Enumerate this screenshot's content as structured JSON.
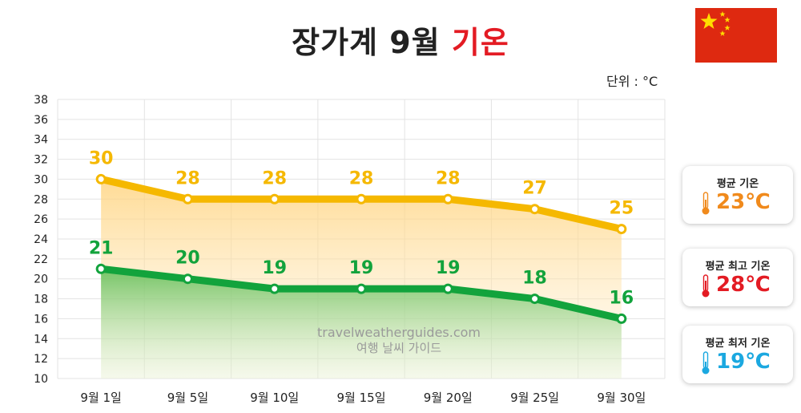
{
  "title": {
    "prefix": "장가계 9월",
    "highlight": "기온"
  },
  "unit_label": "단위 : °C",
  "watermark": {
    "line1": "travelweatherguides.com",
    "line2": "여행 날씨 가이드"
  },
  "colors": {
    "high": "#f5b800",
    "low": "#12a33c",
    "avg": "#f08a1c",
    "max": "#e31b23",
    "min": "#1ba8e0",
    "flag": "#de2910",
    "star": "#ffde00"
  },
  "summary": [
    {
      "label": "평균 기온",
      "value": "23℃",
      "color": "#f08a1c"
    },
    {
      "label": "평균 최고 기온",
      "value": "28℃",
      "color": "#e31b23"
    },
    {
      "label": "평균 최저 기온",
      "value": "19℃",
      "color": "#1ba8e0"
    }
  ],
  "chart_data": {
    "type": "area",
    "categories": [
      "9월 1일",
      "9월 5일",
      "9월 10일",
      "9월 15일",
      "9월 20일",
      "9월 25일",
      "9월 30일"
    ],
    "series": [
      {
        "values": [
          30,
          28,
          28,
          28,
          28,
          27,
          25
        ],
        "color": "#f5b800"
      },
      {
        "values": [
          21,
          20,
          19,
          19,
          19,
          18,
          16
        ],
        "color": "#12a33c"
      }
    ],
    "ylim": [
      10,
      38
    ],
    "yticks": [
      10,
      12,
      14,
      16,
      18,
      20,
      22,
      24,
      26,
      28,
      30,
      32,
      34,
      36,
      38
    ],
    "grid": true,
    "data_labels": true
  }
}
